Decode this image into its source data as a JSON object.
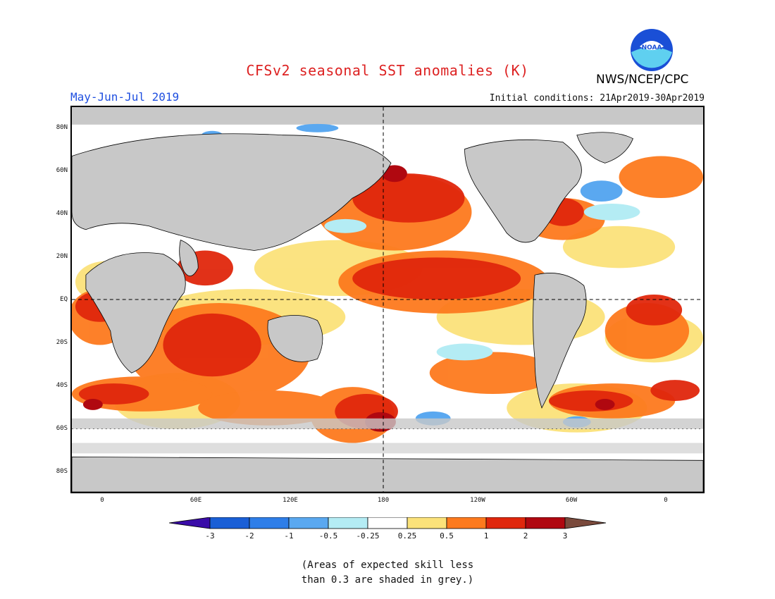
{
  "header": {
    "title": "CFSv2 seasonal SST anomalies (K)",
    "period": "May-Jun-Jul 2019",
    "initial_conditions": "Initial conditions: 21Apr2019-30Apr2019",
    "agency": "NWS/NCEP/CPC",
    "logo_text": "NOAA"
  },
  "map": {
    "lat_labels": [
      "80N",
      "60N",
      "40N",
      "20N",
      "EQ",
      "20S",
      "40S",
      "60S",
      "80S"
    ],
    "lon_labels": [
      "0",
      "60E",
      "120E",
      "180",
      "120W",
      "60W",
      "0"
    ],
    "land_color": "#c8c8c8",
    "grey_note": "(Areas of expected skill less",
    "grey_note_2": "than 0.3 are shaded in grey.)"
  },
  "colorbar": {
    "colors": [
      "#3a0ca8",
      "#1a5fd6",
      "#2e7ee8",
      "#5aa8f0",
      "#b4ecf4",
      "#ffffff",
      "#fbe27a",
      "#fd7a1e",
      "#e0270c",
      "#b00810",
      "#7a4a3c"
    ],
    "labels": [
      "-3",
      "-2",
      "-1",
      "-0.5",
      "-0.25",
      "0.25",
      "0.5",
      "1",
      "2",
      "3"
    ]
  }
}
